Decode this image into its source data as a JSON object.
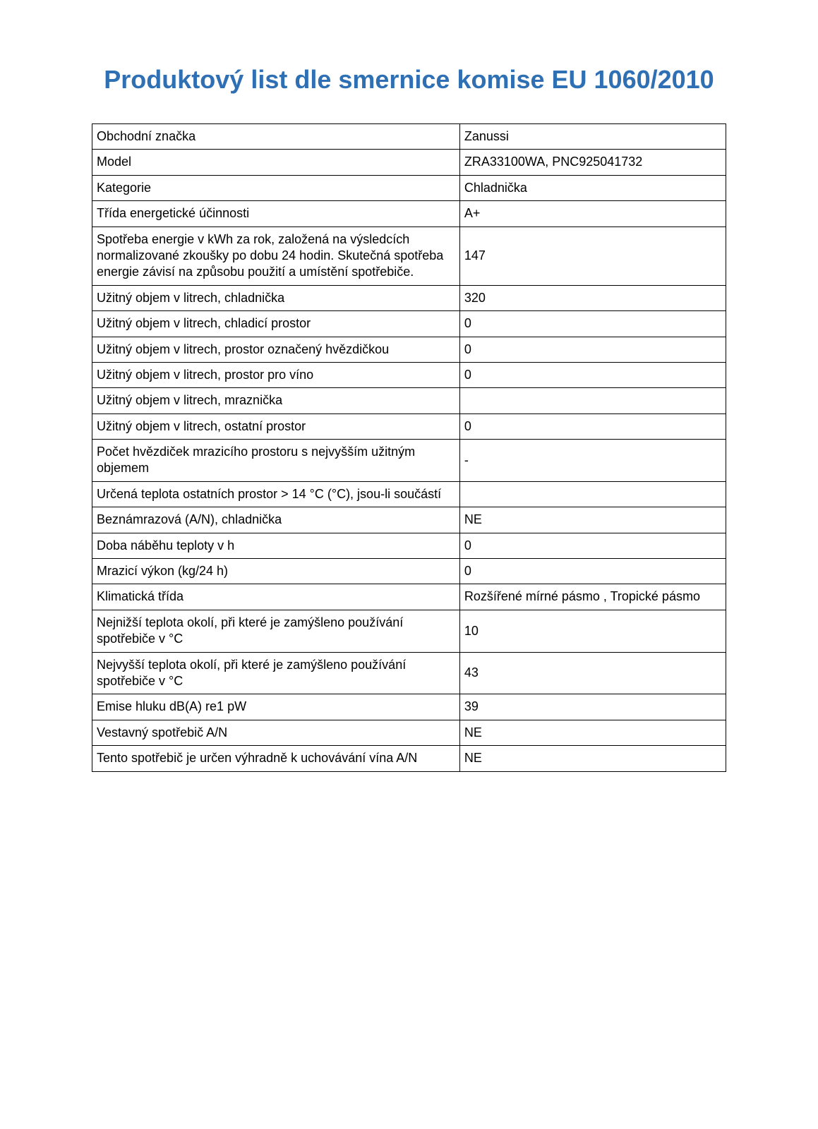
{
  "title": "Produktový list dle smernice komise EU 1060/2010",
  "title_color": "#2f6fb3",
  "title_fontsize": 36,
  "body_fontsize": 18,
  "border_color": "#000000",
  "background_color": "#ffffff",
  "text_color": "#000000",
  "table": {
    "label_col_width_pct": 58,
    "value_col_width_pct": 42,
    "rows": [
      {
        "label": "Obchodní značka",
        "value": "Zanussi"
      },
      {
        "label": "Model",
        "value": "ZRA33100WA, PNC925041732"
      },
      {
        "label": "Kategorie",
        "value": "Chladnička"
      },
      {
        "label": "Třída energetické účinnosti",
        "value": "A+"
      },
      {
        "label": "Spotřeba energie v kWh za rok, založená na výsledcích normalizované zkoušky po dobu 24 hodin. Skutečná spotřeba energie závisí na způsobu použití a umístění spotřebiče.",
        "value": "147"
      },
      {
        "label": "Užitný objem v litrech, chladnička",
        "value": "320"
      },
      {
        "label": "Užitný objem v litrech, chladicí prostor",
        "value": "0"
      },
      {
        "label": "Užitný objem v litrech, prostor označený hvězdičkou",
        "value": "0"
      },
      {
        "label": "Užitný objem v litrech, prostor pro víno",
        "value": "0"
      },
      {
        "label": "Užitný objem v litrech, mraznička",
        "value": ""
      },
      {
        "label": "Užitný objem v litrech, ostatní prostor",
        "value": "0"
      },
      {
        "label": "Počet hvězdiček mrazicího prostoru s nejvyšším užitným objemem",
        "value": "-"
      },
      {
        "label": "Určená teplota ostatních prostor > 14 °C (°C), jsou-li součástí",
        "value": ""
      },
      {
        "label": "Beznámrazová (A/N), chladnička",
        "value": "NE"
      },
      {
        "label": "Doba náběhu teploty v h",
        "value": "0"
      },
      {
        "label": "Mrazicí výkon (kg/24 h)",
        "value": "0"
      },
      {
        "label": "Klimatická třída",
        "value": "Rozšířené mírné pásmo , Tropické pásmo"
      },
      {
        "label": "Nejnižší teplota okolí, při které je zamýšleno používání spotřebiče v °C",
        "value": "10"
      },
      {
        "label": "Nejvyšší teplota okolí, při které je zamýšleno používání spotřebiče v °C",
        "value": "43"
      },
      {
        "label": "Emise hluku dB(A) re1 pW",
        "value": "39"
      },
      {
        "label": "Vestavný spotřebič A/N",
        "value": "NE"
      },
      {
        "label": "Tento spotřebič je určen výhradně k uchovávání vína A/N",
        "value": "NE"
      }
    ]
  }
}
